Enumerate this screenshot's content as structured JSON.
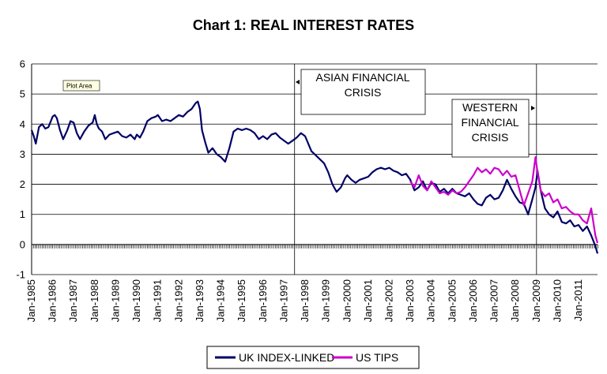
{
  "chart_data": {
    "type": "line",
    "title": "Chart 1: REAL INTEREST RATES",
    "xlabel": "",
    "ylabel": "",
    "ylim": [
      -1,
      6
    ],
    "y_ticks": [
      "-1",
      "0",
      "1",
      "2",
      "3",
      "4",
      "5",
      "6"
    ],
    "x_ticks": [
      "Jan-1985",
      "Jan-1986",
      "Jan-1987",
      "Jan-1988",
      "Jan-1989",
      "Jan-1990",
      "Jan-1991",
      "Jan-1992",
      "Jan-1993",
      "Jan-1994",
      "Jan-1995",
      "Jan-1996",
      "Jan-1997",
      "Jan-1998",
      "Jan-1999",
      "Jan-2000",
      "Jan-2001",
      "Jan-2002",
      "Jan-2003",
      "Jan-2004",
      "Jan-2005",
      "Jan-2006",
      "Jan-2007",
      "Jan-2008",
      "Jan-2009",
      "Jan-2010",
      "Jan-2011"
    ],
    "xlim": [
      1985.0,
      2011.9
    ],
    "grid": true,
    "legend_position": "bottom",
    "series": [
      {
        "name": "UK INDEX-LINKED",
        "color": "#000066",
        "x": [
          1985.0,
          1985.1,
          1985.2,
          1985.35,
          1985.5,
          1985.65,
          1985.8,
          1986.0,
          1986.1,
          1986.2,
          1986.35,
          1986.5,
          1986.7,
          1986.85,
          1987.0,
          1987.15,
          1987.3,
          1987.5,
          1987.7,
          1987.9,
          1988.0,
          1988.1,
          1988.2,
          1988.35,
          1988.5,
          1988.7,
          1988.9,
          1989.1,
          1989.3,
          1989.5,
          1989.7,
          1989.9,
          1990.0,
          1990.15,
          1990.3,
          1990.5,
          1990.7,
          1990.9,
          1991.0,
          1991.2,
          1991.4,
          1991.6,
          1991.8,
          1992.0,
          1992.2,
          1992.4,
          1992.6,
          1992.8,
          1992.9,
          1993.0,
          1993.1,
          1993.25,
          1993.4,
          1993.6,
          1993.8,
          1994.0,
          1994.2,
          1994.4,
          1994.6,
          1994.8,
          1995.0,
          1995.2,
          1995.4,
          1995.6,
          1995.8,
          1996.0,
          1996.2,
          1996.4,
          1996.6,
          1996.8,
          1997.0,
          1997.2,
          1997.4,
          1997.6,
          1997.8,
          1998.0,
          1998.3,
          1998.6,
          1998.9,
          1999.1,
          1999.3,
          1999.5,
          1999.7,
          1999.9,
          2000.0,
          2000.2,
          2000.4,
          2000.6,
          2000.8,
          2001.0,
          2001.2,
          2001.4,
          2001.6,
          2001.8,
          2002.0,
          2002.2,
          2002.4,
          2002.6,
          2002.8,
          2003.0,
          2003.2,
          2003.4,
          2003.6,
          2003.8,
          2004.0,
          2004.2,
          2004.4,
          2004.6,
          2004.8,
          2005.0,
          2005.2,
          2005.4,
          2005.6,
          2005.8,
          2006.0,
          2006.2,
          2006.4,
          2006.6,
          2006.8,
          2007.0,
          2007.2,
          2007.4,
          2007.6,
          2007.8,
          2008.0,
          2008.2,
          2008.4,
          2008.6,
          2008.8,
          2008.95,
          2009.05,
          2009.2,
          2009.4,
          2009.6,
          2009.8,
          2010.0,
          2010.2,
          2010.4,
          2010.6,
          2010.8,
          2011.0,
          2011.2,
          2011.4,
          2011.6,
          2011.8,
          2011.9
        ],
        "values": [
          3.8,
          3.6,
          3.35,
          3.9,
          4.0,
          3.85,
          3.9,
          4.25,
          4.3,
          4.2,
          3.8,
          3.5,
          3.8,
          4.1,
          4.05,
          3.7,
          3.5,
          3.75,
          3.95,
          4.05,
          4.3,
          4.0,
          3.85,
          3.75,
          3.5,
          3.65,
          3.7,
          3.75,
          3.6,
          3.55,
          3.65,
          3.5,
          3.65,
          3.55,
          3.75,
          4.1,
          4.2,
          4.25,
          4.3,
          4.1,
          4.15,
          4.1,
          4.2,
          4.3,
          4.25,
          4.4,
          4.5,
          4.7,
          4.75,
          4.5,
          3.8,
          3.4,
          3.05,
          3.2,
          3.0,
          2.9,
          2.75,
          3.2,
          3.75,
          3.85,
          3.8,
          3.85,
          3.8,
          3.7,
          3.5,
          3.6,
          3.5,
          3.65,
          3.7,
          3.55,
          3.45,
          3.35,
          3.45,
          3.55,
          3.7,
          3.6,
          3.1,
          2.9,
          2.7,
          2.4,
          2.0,
          1.75,
          1.9,
          2.2,
          2.3,
          2.15,
          2.05,
          2.15,
          2.2,
          2.25,
          2.4,
          2.5,
          2.55,
          2.5,
          2.55,
          2.45,
          2.4,
          2.3,
          2.35,
          2.15,
          1.8,
          1.9,
          2.1,
          1.8,
          2.05,
          2.0,
          1.75,
          1.85,
          1.7,
          1.85,
          1.7,
          1.65,
          1.6,
          1.7,
          1.5,
          1.35,
          1.3,
          1.55,
          1.65,
          1.5,
          1.55,
          1.8,
          2.15,
          1.85,
          1.6,
          1.4,
          1.35,
          1.0,
          1.5,
          1.9,
          2.45,
          1.8,
          1.2,
          1.0,
          0.9,
          1.1,
          0.75,
          0.7,
          0.8,
          0.6,
          0.65,
          0.45,
          0.6,
          0.3,
          -0.05,
          -0.3
        ]
      },
      {
        "name": "US TIPS",
        "color": "#cc00cc",
        "x": [
          2003.0,
          2003.2,
          2003.4,
          2003.6,
          2003.8,
          2004.0,
          2004.2,
          2004.4,
          2004.6,
          2004.8,
          2005.0,
          2005.2,
          2005.4,
          2005.6,
          2005.8,
          2006.0,
          2006.2,
          2006.4,
          2006.6,
          2006.8,
          2007.0,
          2007.2,
          2007.4,
          2007.6,
          2007.8,
          2008.0,
          2008.2,
          2008.4,
          2008.6,
          2008.8,
          2008.95,
          2009.05,
          2009.2,
          2009.4,
          2009.6,
          2009.8,
          2010.0,
          2010.2,
          2010.4,
          2010.6,
          2010.8,
          2011.0,
          2011.2,
          2011.4,
          2011.6,
          2011.8,
          2011.9
        ],
        "values": [
          2.1,
          1.9,
          2.3,
          1.95,
          1.8,
          2.1,
          1.9,
          1.7,
          1.75,
          1.65,
          1.8,
          1.7,
          1.75,
          1.9,
          2.1,
          2.3,
          2.55,
          2.4,
          2.5,
          2.35,
          2.55,
          2.5,
          2.3,
          2.45,
          2.25,
          2.3,
          1.8,
          1.3,
          1.7,
          2.1,
          2.9,
          2.4,
          1.8,
          1.6,
          1.7,
          1.4,
          1.5,
          1.2,
          1.25,
          1.1,
          1.0,
          1.0,
          0.8,
          0.7,
          1.2,
          0.3,
          0.05
        ]
      }
    ],
    "annotations": [
      {
        "id": "asian",
        "x": 1997.5,
        "lines": [
          "ASIAN FINANCIAL",
          "CRISIS"
        ]
      },
      {
        "id": "western",
        "x": 2009.0,
        "lines": [
          "WESTERN",
          "FINANCIAL",
          "CRISIS"
        ]
      }
    ],
    "tooltip": "Plot Area"
  }
}
